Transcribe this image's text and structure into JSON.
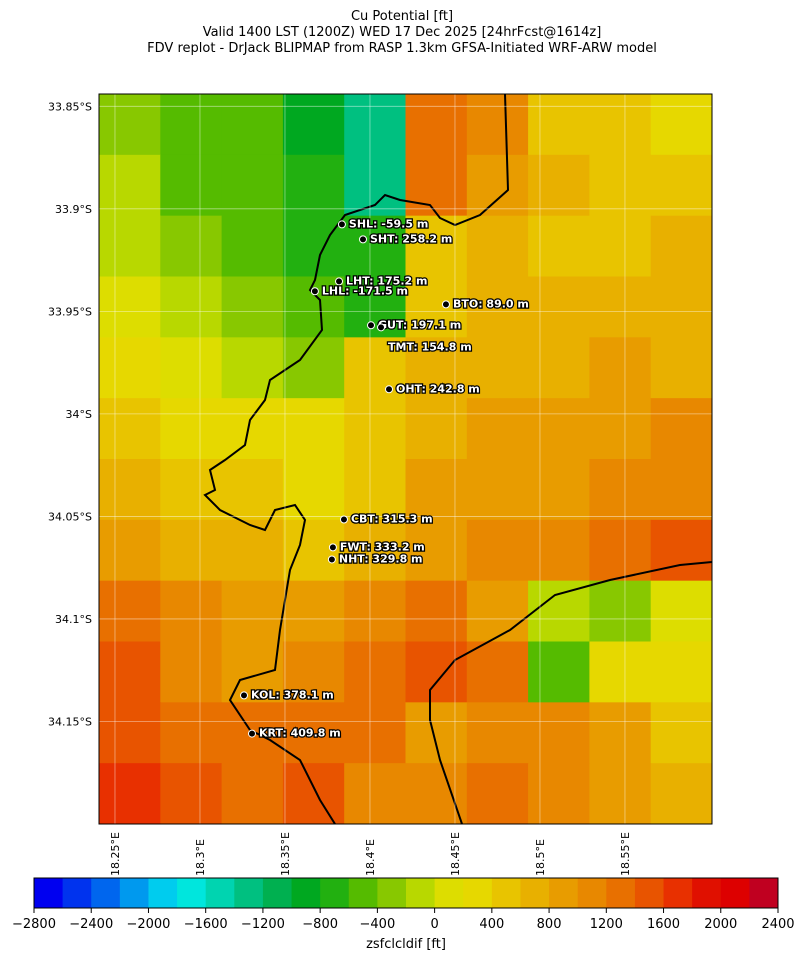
{
  "chart_data": {
    "type": "map",
    "title_lines": [
      "Cu Potential [ft]",
      "Valid 1400 LST (1200Z) WED 17 Dec 2025 [24hrFcst@1614z]",
      "FDV replot - DrJack BLIPMAP from RASP 1.3km GFSA-Initiated WRF-ARW model"
    ],
    "xlim": [
      18.2406,
      18.6012
    ],
    "ylim": [
      -34.2,
      -33.844
    ],
    "xticks": [
      {
        "value": 18.25,
        "label": "18.25°E"
      },
      {
        "value": 18.3,
        "label": "18.3°E"
      },
      {
        "value": 18.35,
        "label": "18.35°E"
      },
      {
        "value": 18.4,
        "label": "18.4°E"
      },
      {
        "value": 18.45,
        "label": "18.45°E"
      },
      {
        "value": 18.5,
        "label": "18.5°E"
      },
      {
        "value": 18.55,
        "label": "18.55°E"
      }
    ],
    "yticks": [
      {
        "value": -33.85,
        "label": "33.85°S"
      },
      {
        "value": -33.9,
        "label": "33.9°S"
      },
      {
        "value": -33.95,
        "label": "33.95°S"
      },
      {
        "value": -34.0,
        "label": "34°S"
      },
      {
        "value": -34.05,
        "label": "34.05°S"
      },
      {
        "value": -34.1,
        "label": "34.1°S"
      },
      {
        "value": -34.15,
        "label": "34.15°S"
      }
    ],
    "field": [
      [
        -300,
        -500,
        -600,
        -900,
        -1400,
        1200,
        1000,
        500,
        400,
        200
      ],
      [
        -200,
        -500,
        -600,
        -800,
        -1300,
        1200,
        800,
        600,
        500,
        400
      ],
      [
        -200,
        -400,
        -500,
        -700,
        -800,
        400,
        600,
        500,
        500,
        600
      ],
      [
        100,
        -200,
        -400,
        -600,
        -700,
        500,
        600,
        600,
        700,
        600
      ],
      [
        300,
        100,
        -200,
        -400,
        500,
        600,
        700,
        700,
        800,
        700
      ],
      [
        400,
        300,
        200,
        300,
        500,
        700,
        800,
        800,
        900,
        1000
      ],
      [
        600,
        500,
        400,
        300,
        500,
        800,
        900,
        900,
        1000,
        1100
      ],
      [
        800,
        700,
        600,
        500,
        600,
        900,
        1000,
        1100,
        1300,
        1400
      ],
      [
        1200,
        1000,
        800,
        900,
        1100,
        1200,
        900,
        -200,
        -400,
        0
      ],
      [
        1400,
        1000,
        900,
        1100,
        1300,
        1400,
        1200,
        -500,
        200,
        300
      ],
      [
        1500,
        1300,
        1200,
        1300,
        1200,
        900,
        1000,
        1100,
        800,
        500
      ],
      [
        1600,
        1400,
        1300,
        1500,
        1000,
        1100,
        1200,
        1000,
        800,
        600
      ]
    ],
    "stations": [
      {
        "label": "SHL: -59.5 m",
        "lon": 18.3835,
        "lat": -33.9076
      },
      {
        "label": "SHT: 258.2 m",
        "lon": 18.3959,
        "lat": -33.9149
      },
      {
        "label": "LHT: 175.2 m",
        "lon": 18.3818,
        "lat": -33.9354
      },
      {
        "label": "LHL: -171.5 m",
        "lon": 18.3676,
        "lat": -33.9402
      },
      {
        "label": "BTO: 89.0 m",
        "lon": 18.4447,
        "lat": -33.9466
      },
      {
        "label": "GUT: 197.1 m",
        "lon": 18.4006,
        "lat": -33.9568
      },
      {
        "label": "TMT: 154.8 m",
        "lon": 18.4065,
        "lat": -33.9578
      },
      {
        "label": "OHT: 242.8 m",
        "lon": 18.4112,
        "lat": -33.988
      },
      {
        "label": "CBT: 315.3 m",
        "lon": 18.3847,
        "lat": -34.0515
      },
      {
        "label": "FWT: 333.2 m",
        "lon": 18.3782,
        "lat": -34.0651
      },
      {
        "label": "NHT: 329.8 m",
        "lon": 18.3776,
        "lat": -34.071
      },
      {
        "label": "KOL: 378.1 m",
        "lon": 18.3259,
        "lat": -34.1373
      },
      {
        "label": "KRT: 409.8 m",
        "lon": 18.3306,
        "lat": -34.1559
      }
    ],
    "colorbar": {
      "label": "zsfclcldif [ft]",
      "clim": [
        -2800,
        2400
      ],
      "colors": [
        "#0000f0",
        "#0033ee",
        "#0066ee",
        "#0099ee",
        "#00ccee",
        "#00e6dd",
        "#00d4b0",
        "#00c080",
        "#00b050",
        "#00a820",
        "#22b010",
        "#55bb00",
        "#88c800",
        "#b8d800",
        "#dddd00",
        "#e6d800",
        "#e8c400",
        "#e8b000",
        "#e89c00",
        "#e88800",
        "#e87000",
        "#e85400",
        "#e83000",
        "#e01000",
        "#dd0000",
        "#c00020"
      ],
      "ticks": [
        {
          "value": -2800,
          "label": "−2800"
        },
        {
          "value": -2400,
          "label": "−2400"
        },
        {
          "value": -2000,
          "label": "−2000"
        },
        {
          "value": -1600,
          "label": "−1600"
        },
        {
          "value": -1200,
          "label": "−1200"
        },
        {
          "value": -800,
          "label": "−800"
        },
        {
          "value": -400,
          "label": "−400"
        },
        0,
        400,
        800,
        1200,
        1600,
        2000,
        2400
      ]
    }
  }
}
